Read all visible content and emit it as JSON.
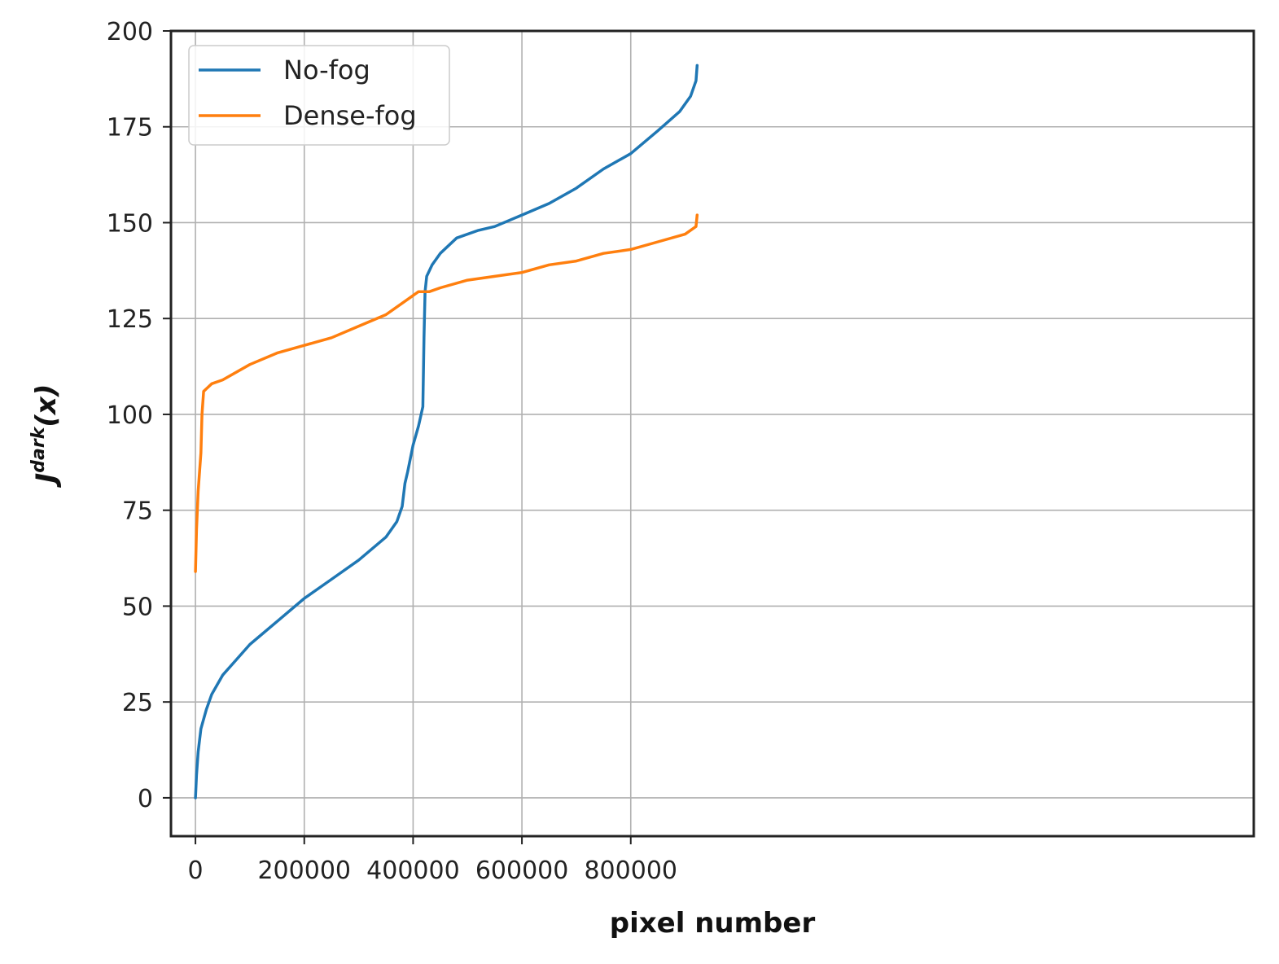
{
  "chart_data": {
    "type": "line",
    "title": "",
    "xlabel": "pixel number",
    "ylabel": {
      "base": "J",
      "superscript": "dark",
      "arg": "(x)"
    },
    "xlim": [
      -45000,
      1945000
    ],
    "ylim": [
      -10,
      200
    ],
    "xticks": [
      0,
      200000,
      400000,
      600000,
      800000
    ],
    "xtick_labels": [
      "0",
      "200000",
      "400000",
      "600000",
      "800000"
    ],
    "yticks": [
      0,
      25,
      50,
      75,
      100,
      125,
      150,
      175,
      200
    ],
    "ytick_labels": [
      "0",
      "25",
      "50",
      "75",
      "100",
      "125",
      "150",
      "175",
      "200"
    ],
    "grid": true,
    "legend_position": "top-left",
    "series": [
      {
        "name": "No-fog",
        "color": "#1f77b4",
        "x": [
          0,
          2000,
          5000,
          10000,
          20000,
          30000,
          50000,
          75000,
          100000,
          150000,
          200000,
          250000,
          300000,
          350000,
          370000,
          380000,
          385000,
          390000,
          400000,
          410000,
          418000,
          420000,
          422000,
          425000,
          435000,
          450000,
          480000,
          520000,
          550000,
          600000,
          650000,
          700000,
          750000,
          800000,
          850000,
          890000,
          910000,
          920000,
          922000
        ],
        "y": [
          0,
          6,
          12,
          18,
          23,
          27,
          32,
          36,
          40,
          46,
          52,
          57,
          62,
          68,
          72,
          76,
          82,
          85,
          92,
          97,
          102,
          120,
          132,
          136,
          139,
          142,
          146,
          148,
          149,
          152,
          155,
          159,
          164,
          168,
          174,
          179,
          183,
          187,
          191
        ]
      },
      {
        "name": "Dense-fog",
        "color": "#ff7f0e",
        "x": [
          0,
          2000,
          5000,
          10000,
          12000,
          15000,
          30000,
          50000,
          100000,
          150000,
          200000,
          250000,
          300000,
          350000,
          370000,
          390000,
          410000,
          430000,
          450000,
          500000,
          550000,
          600000,
          650000,
          700000,
          750000,
          800000,
          850000,
          900000,
          920000,
          922000
        ],
        "y": [
          59,
          70,
          80,
          90,
          100,
          106,
          108,
          109,
          113,
          116,
          118,
          120,
          123,
          126,
          128,
          130,
          132,
          132,
          133,
          135,
          136,
          137,
          139,
          140,
          142,
          143,
          145,
          147,
          149,
          152
        ]
      }
    ]
  }
}
